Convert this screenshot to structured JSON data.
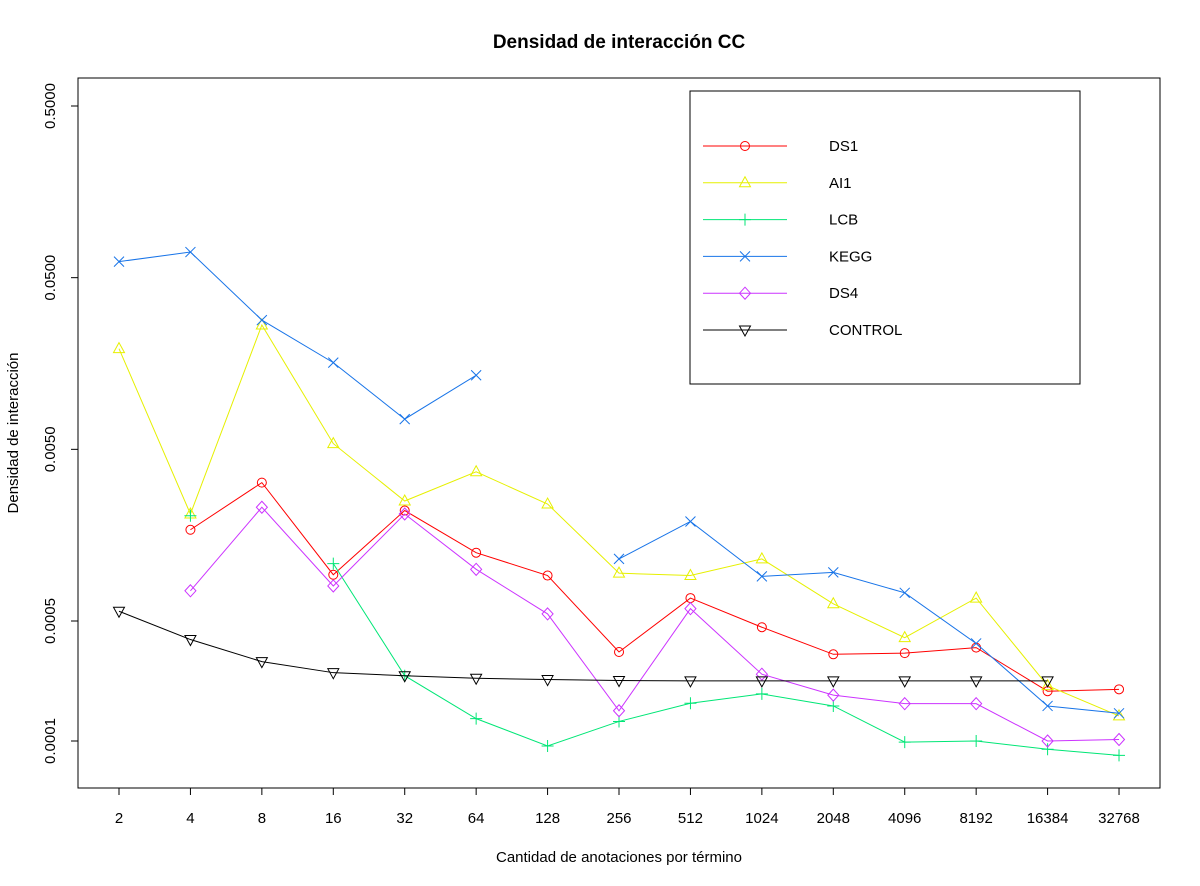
{
  "chart_data": {
    "type": "line",
    "title": "Densidad de interacción CC",
    "xlabel": "Cantidad de anotaciones por término",
    "ylabel": "Densidad de interacción",
    "y_scale": "log",
    "ylim": [
      7.5e-05,
      0.62
    ],
    "y_ticks": [
      0.5,
      0.05,
      0.005,
      0.0005,
      0.0001
    ],
    "y_tick_labels": [
      "0.5000",
      "0.0500",
      "0.0050",
      "0.0005",
      "0.0001"
    ],
    "categories": [
      "2",
      "4",
      "8",
      "16",
      "32",
      "64",
      "128",
      "256",
      "512",
      "1024",
      "2048",
      "4096",
      "8192",
      "16384",
      "32768"
    ],
    "legend_position": "top-right",
    "series": [
      {
        "name": "DS1",
        "color": "#ff0000",
        "marker": "circle",
        "values": [
          null,
          0.0017,
          0.0032,
          0.00093,
          0.0022,
          0.00125,
          0.00092,
          0.00033,
          0.00068,
          0.00046,
          0.00032,
          0.000325,
          0.00035,
          0.000195,
          0.0002
        ]
      },
      {
        "name": "AI1",
        "color": "#e6f000",
        "marker": "triangle-up",
        "values": [
          0.0193,
          0.0021,
          0.0265,
          0.0054,
          0.0025,
          0.0037,
          0.0024,
          0.00095,
          0.00092,
          0.00115,
          0.00063,
          0.0004,
          0.00068,
          0.00021,
          0.00014
        ]
      },
      {
        "name": "LCB",
        "color": "#00e676",
        "marker": "plus",
        "values": [
          null,
          0.00205,
          null,
          0.00108,
          0.00024,
          0.000135,
          9.35e-05,
          0.00013,
          0.000166,
          0.000188,
          0.00016,
          9.85e-05,
          0.0001,
          8.95e-05,
          8.25e-05
        ]
      },
      {
        "name": "KEGG",
        "color": "#1874e8",
        "marker": "x",
        "values": [
          0.062,
          0.0705,
          0.0283,
          0.016,
          0.0075,
          0.0135,
          null,
          0.00115,
          0.0019,
          0.00091,
          0.00096,
          0.00073,
          0.00037,
          0.00016,
          0.000145
        ]
      },
      {
        "name": "DS4",
        "color": "#cc33ff",
        "marker": "diamond",
        "values": [
          null,
          0.00075,
          0.0023,
          0.0008,
          0.0021,
          0.001,
          0.00055,
          0.00015,
          0.00059,
          0.000245,
          0.000185,
          0.000165,
          0.000165,
          0.0001,
          0.000102
        ]
      },
      {
        "name": "CONTROL",
        "color": "#000000",
        "marker": "triangle-down",
        "values": [
          0.00057,
          0.00039,
          0.00029,
          0.00025,
          0.00024,
          0.000232,
          0.000228,
          0.000225,
          0.000224,
          0.000224,
          0.000224,
          0.000224,
          0.000224,
          0.000224,
          null
        ]
      }
    ]
  }
}
